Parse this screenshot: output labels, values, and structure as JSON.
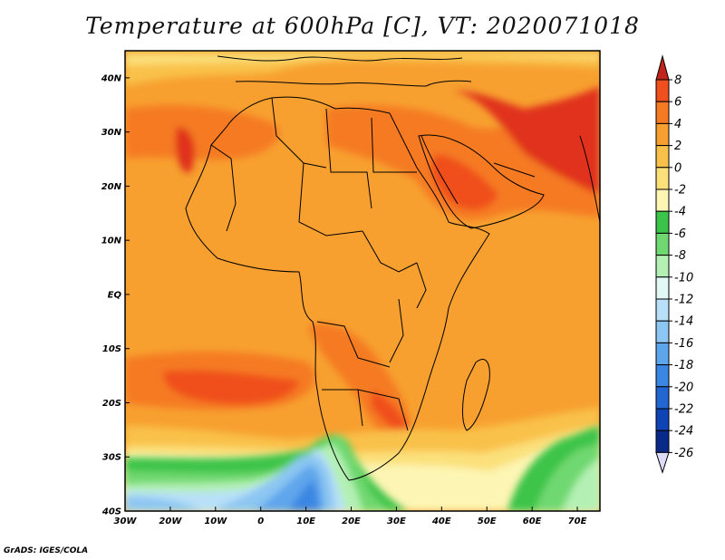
{
  "title": "Temperature at 600hPa [C], VT: 2020071018",
  "credit": "GrADS: IGES/COLA",
  "map": {
    "lon_range": [
      -30,
      75
    ],
    "lat_range": [
      -40,
      45
    ],
    "lat_ticks": [
      {
        "value": 40,
        "label": "40N"
      },
      {
        "value": 30,
        "label": "30N"
      },
      {
        "value": 20,
        "label": "20N"
      },
      {
        "value": 10,
        "label": "10N"
      },
      {
        "value": 0,
        "label": "EQ"
      },
      {
        "value": -10,
        "label": "10S"
      },
      {
        "value": -20,
        "label": "20S"
      },
      {
        "value": -30,
        "label": "30S"
      },
      {
        "value": -40,
        "label": "40S"
      }
    ],
    "lon_ticks": [
      {
        "value": -30,
        "label": "30W"
      },
      {
        "value": -20,
        "label": "20W"
      },
      {
        "value": -10,
        "label": "10W"
      },
      {
        "value": 0,
        "label": "0"
      },
      {
        "value": 10,
        "label": "10E"
      },
      {
        "value": 20,
        "label": "20E"
      },
      {
        "value": 30,
        "label": "30E"
      },
      {
        "value": 40,
        "label": "40E"
      },
      {
        "value": 50,
        "label": "50E"
      },
      {
        "value": 60,
        "label": "60E"
      },
      {
        "value": 70,
        "label": "70E"
      }
    ]
  },
  "colorbar": {
    "levels": [
      {
        "label": "8",
        "color": "#e0331c"
      },
      {
        "label": "6",
        "color": "#f0501e"
      },
      {
        "label": "4",
        "color": "#f57a22"
      },
      {
        "label": "2",
        "color": "#f7a030"
      },
      {
        "label": "0",
        "color": "#f9c149"
      },
      {
        "label": "-2",
        "color": "#fbe07a"
      },
      {
        "label": "-4",
        "color": "#fdf5b3"
      },
      {
        "label": "-6",
        "color": "#3cc44a"
      },
      {
        "label": "-8",
        "color": "#6fd870"
      },
      {
        "label": "-10",
        "color": "#b4f0b4"
      },
      {
        "label": "-12",
        "color": "#e2f8f5"
      },
      {
        "label": "-14",
        "color": "#b8e0f8"
      },
      {
        "label": "-16",
        "color": "#8cc6f2"
      },
      {
        "label": "-18",
        "color": "#5ea6ec"
      },
      {
        "label": "-20",
        "color": "#3a86e2"
      },
      {
        "label": "-22",
        "color": "#2266d2"
      },
      {
        "label": "-24",
        "color": "#0e44b6"
      },
      {
        "label": "-26",
        "color": "#0a2a8a"
      }
    ],
    "top_arrow_color": "#c0241a",
    "bottom_arrow_color": "#dcdcf8"
  }
}
